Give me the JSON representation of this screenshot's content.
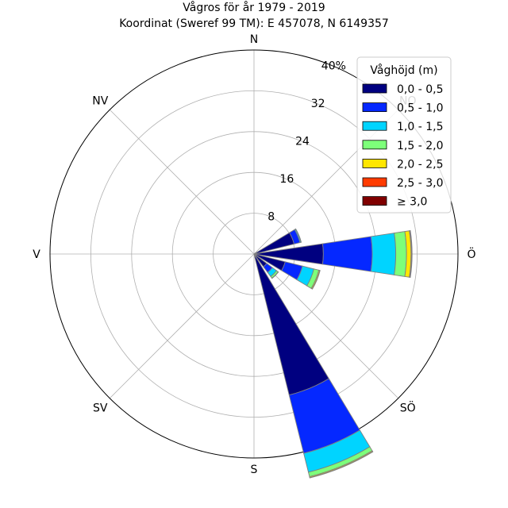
{
  "chart_data": {
    "type": "windrose",
    "title_line1": "Vågros för år 1979 - 2019",
    "title_line2": "Koordinat (Sweref 99 TM): E 457078, N 6149357",
    "directions": [
      "N",
      "NO",
      "Ö",
      "SÖ",
      "S",
      "SV",
      "V",
      "NV"
    ],
    "sector_directions_deg": [
      67.5,
      90,
      112.5,
      135,
      157.5
    ],
    "radial_max": 40,
    "radial_ticks": [
      8,
      16,
      24,
      32
    ],
    "radial_tick_labels": [
      "8",
      "16",
      "24",
      "32",
      "40%"
    ],
    "grid": true,
    "legend": {
      "title": "Våghöjd (m)",
      "position": "top-right",
      "bins": [
        "0,0 - 0,5",
        "0,5 - 1,0",
        "1,0 - 1,5",
        "1,5 - 2,0",
        "2,0 - 2,5",
        "2,5 - 3,0",
        "≥ 3,0"
      ],
      "colors": [
        "#000080",
        "#0528ff",
        "#00d4ff",
        "#7dff7a",
        "#ffe600",
        "#ff3b00",
        "#800000"
      ]
    },
    "series": [
      {
        "name": "0,0 - 0,5",
        "values": [
          8.1,
          13.6,
          6.3,
          3.1,
          28.5
        ]
      },
      {
        "name": "0,5 - 1,0",
        "values": [
          1.2,
          9.6,
          3.5,
          1.4,
          11.8
        ]
      },
      {
        "name": "1,0 - 1,5",
        "values": [
          0.2,
          4.6,
          2.3,
          1.0,
          3.8
        ]
      },
      {
        "name": "1,5 - 2,0",
        "values": [
          0.05,
          2.1,
          1.0,
          0.4,
          0.9
        ]
      },
      {
        "name": "2,0 - 2,5",
        "values": [
          0,
          0.9,
          0.2,
          0.05,
          0.2
        ]
      },
      {
        "name": "2,5 - 3,0",
        "values": [
          0,
          0.15,
          0.05,
          0,
          0.05
        ]
      },
      {
        "name": "≥ 3,0",
        "values": [
          0,
          0.05,
          0,
          0,
          0
        ]
      }
    ]
  }
}
